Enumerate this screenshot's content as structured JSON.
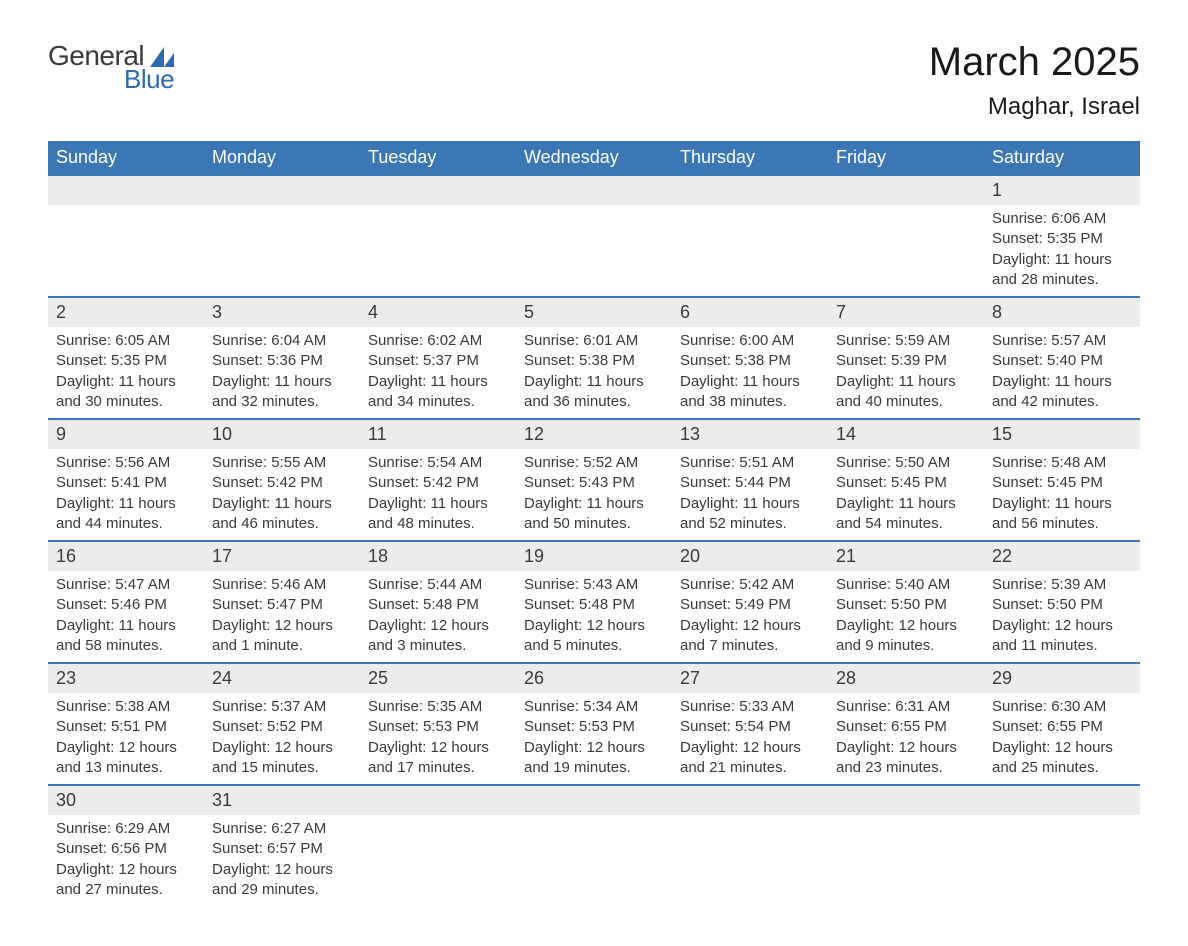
{
  "logo": {
    "word1": "General",
    "word2": "Blue"
  },
  "header": {
    "month_title": "March 2025",
    "location": "Maghar, Israel"
  },
  "colors": {
    "header_blue": "#3b76b5",
    "logo_blue": "#2d6bb0",
    "text_dark": "#1a1a1a",
    "text_body": "#3a3a3a",
    "row_gray": "#ececec",
    "border_blue": "#3b76b5",
    "background": "#ffffff"
  },
  "weekdays": [
    "Sunday",
    "Monday",
    "Tuesday",
    "Wednesday",
    "Thursday",
    "Friday",
    "Saturday"
  ],
  "weeks": [
    [
      null,
      null,
      null,
      null,
      null,
      null,
      {
        "day": "1",
        "sunrise": "Sunrise: 6:06 AM",
        "sunset": "Sunset: 5:35 PM",
        "daylight1": "Daylight: 11 hours",
        "daylight2": "and 28 minutes."
      }
    ],
    [
      {
        "day": "2",
        "sunrise": "Sunrise: 6:05 AM",
        "sunset": "Sunset: 5:35 PM",
        "daylight1": "Daylight: 11 hours",
        "daylight2": "and 30 minutes."
      },
      {
        "day": "3",
        "sunrise": "Sunrise: 6:04 AM",
        "sunset": "Sunset: 5:36 PM",
        "daylight1": "Daylight: 11 hours",
        "daylight2": "and 32 minutes."
      },
      {
        "day": "4",
        "sunrise": "Sunrise: 6:02 AM",
        "sunset": "Sunset: 5:37 PM",
        "daylight1": "Daylight: 11 hours",
        "daylight2": "and 34 minutes."
      },
      {
        "day": "5",
        "sunrise": "Sunrise: 6:01 AM",
        "sunset": "Sunset: 5:38 PM",
        "daylight1": "Daylight: 11 hours",
        "daylight2": "and 36 minutes."
      },
      {
        "day": "6",
        "sunrise": "Sunrise: 6:00 AM",
        "sunset": "Sunset: 5:38 PM",
        "daylight1": "Daylight: 11 hours",
        "daylight2": "and 38 minutes."
      },
      {
        "day": "7",
        "sunrise": "Sunrise: 5:59 AM",
        "sunset": "Sunset: 5:39 PM",
        "daylight1": "Daylight: 11 hours",
        "daylight2": "and 40 minutes."
      },
      {
        "day": "8",
        "sunrise": "Sunrise: 5:57 AM",
        "sunset": "Sunset: 5:40 PM",
        "daylight1": "Daylight: 11 hours",
        "daylight2": "and 42 minutes."
      }
    ],
    [
      {
        "day": "9",
        "sunrise": "Sunrise: 5:56 AM",
        "sunset": "Sunset: 5:41 PM",
        "daylight1": "Daylight: 11 hours",
        "daylight2": "and 44 minutes."
      },
      {
        "day": "10",
        "sunrise": "Sunrise: 5:55 AM",
        "sunset": "Sunset: 5:42 PM",
        "daylight1": "Daylight: 11 hours",
        "daylight2": "and 46 minutes."
      },
      {
        "day": "11",
        "sunrise": "Sunrise: 5:54 AM",
        "sunset": "Sunset: 5:42 PM",
        "daylight1": "Daylight: 11 hours",
        "daylight2": "and 48 minutes."
      },
      {
        "day": "12",
        "sunrise": "Sunrise: 5:52 AM",
        "sunset": "Sunset: 5:43 PM",
        "daylight1": "Daylight: 11 hours",
        "daylight2": "and 50 minutes."
      },
      {
        "day": "13",
        "sunrise": "Sunrise: 5:51 AM",
        "sunset": "Sunset: 5:44 PM",
        "daylight1": "Daylight: 11 hours",
        "daylight2": "and 52 minutes."
      },
      {
        "day": "14",
        "sunrise": "Sunrise: 5:50 AM",
        "sunset": "Sunset: 5:45 PM",
        "daylight1": "Daylight: 11 hours",
        "daylight2": "and 54 minutes."
      },
      {
        "day": "15",
        "sunrise": "Sunrise: 5:48 AM",
        "sunset": "Sunset: 5:45 PM",
        "daylight1": "Daylight: 11 hours",
        "daylight2": "and 56 minutes."
      }
    ],
    [
      {
        "day": "16",
        "sunrise": "Sunrise: 5:47 AM",
        "sunset": "Sunset: 5:46 PM",
        "daylight1": "Daylight: 11 hours",
        "daylight2": "and 58 minutes."
      },
      {
        "day": "17",
        "sunrise": "Sunrise: 5:46 AM",
        "sunset": "Sunset: 5:47 PM",
        "daylight1": "Daylight: 12 hours",
        "daylight2": "and 1 minute."
      },
      {
        "day": "18",
        "sunrise": "Sunrise: 5:44 AM",
        "sunset": "Sunset: 5:48 PM",
        "daylight1": "Daylight: 12 hours",
        "daylight2": "and 3 minutes."
      },
      {
        "day": "19",
        "sunrise": "Sunrise: 5:43 AM",
        "sunset": "Sunset: 5:48 PM",
        "daylight1": "Daylight: 12 hours",
        "daylight2": "and 5 minutes."
      },
      {
        "day": "20",
        "sunrise": "Sunrise: 5:42 AM",
        "sunset": "Sunset: 5:49 PM",
        "daylight1": "Daylight: 12 hours",
        "daylight2": "and 7 minutes."
      },
      {
        "day": "21",
        "sunrise": "Sunrise: 5:40 AM",
        "sunset": "Sunset: 5:50 PM",
        "daylight1": "Daylight: 12 hours",
        "daylight2": "and 9 minutes."
      },
      {
        "day": "22",
        "sunrise": "Sunrise: 5:39 AM",
        "sunset": "Sunset: 5:50 PM",
        "daylight1": "Daylight: 12 hours",
        "daylight2": "and 11 minutes."
      }
    ],
    [
      {
        "day": "23",
        "sunrise": "Sunrise: 5:38 AM",
        "sunset": "Sunset: 5:51 PM",
        "daylight1": "Daylight: 12 hours",
        "daylight2": "and 13 minutes."
      },
      {
        "day": "24",
        "sunrise": "Sunrise: 5:37 AM",
        "sunset": "Sunset: 5:52 PM",
        "daylight1": "Daylight: 12 hours",
        "daylight2": "and 15 minutes."
      },
      {
        "day": "25",
        "sunrise": "Sunrise: 5:35 AM",
        "sunset": "Sunset: 5:53 PM",
        "daylight1": "Daylight: 12 hours",
        "daylight2": "and 17 minutes."
      },
      {
        "day": "26",
        "sunrise": "Sunrise: 5:34 AM",
        "sunset": "Sunset: 5:53 PM",
        "daylight1": "Daylight: 12 hours",
        "daylight2": "and 19 minutes."
      },
      {
        "day": "27",
        "sunrise": "Sunrise: 5:33 AM",
        "sunset": "Sunset: 5:54 PM",
        "daylight1": "Daylight: 12 hours",
        "daylight2": "and 21 minutes."
      },
      {
        "day": "28",
        "sunrise": "Sunrise: 6:31 AM",
        "sunset": "Sunset: 6:55 PM",
        "daylight1": "Daylight: 12 hours",
        "daylight2": "and 23 minutes."
      },
      {
        "day": "29",
        "sunrise": "Sunrise: 6:30 AM",
        "sunset": "Sunset: 6:55 PM",
        "daylight1": "Daylight: 12 hours",
        "daylight2": "and 25 minutes."
      }
    ],
    [
      {
        "day": "30",
        "sunrise": "Sunrise: 6:29 AM",
        "sunset": "Sunset: 6:56 PM",
        "daylight1": "Daylight: 12 hours",
        "daylight2": "and 27 minutes."
      },
      {
        "day": "31",
        "sunrise": "Sunrise: 6:27 AM",
        "sunset": "Sunset: 6:57 PM",
        "daylight1": "Daylight: 12 hours",
        "daylight2": "and 29 minutes."
      },
      null,
      null,
      null,
      null,
      null
    ]
  ]
}
